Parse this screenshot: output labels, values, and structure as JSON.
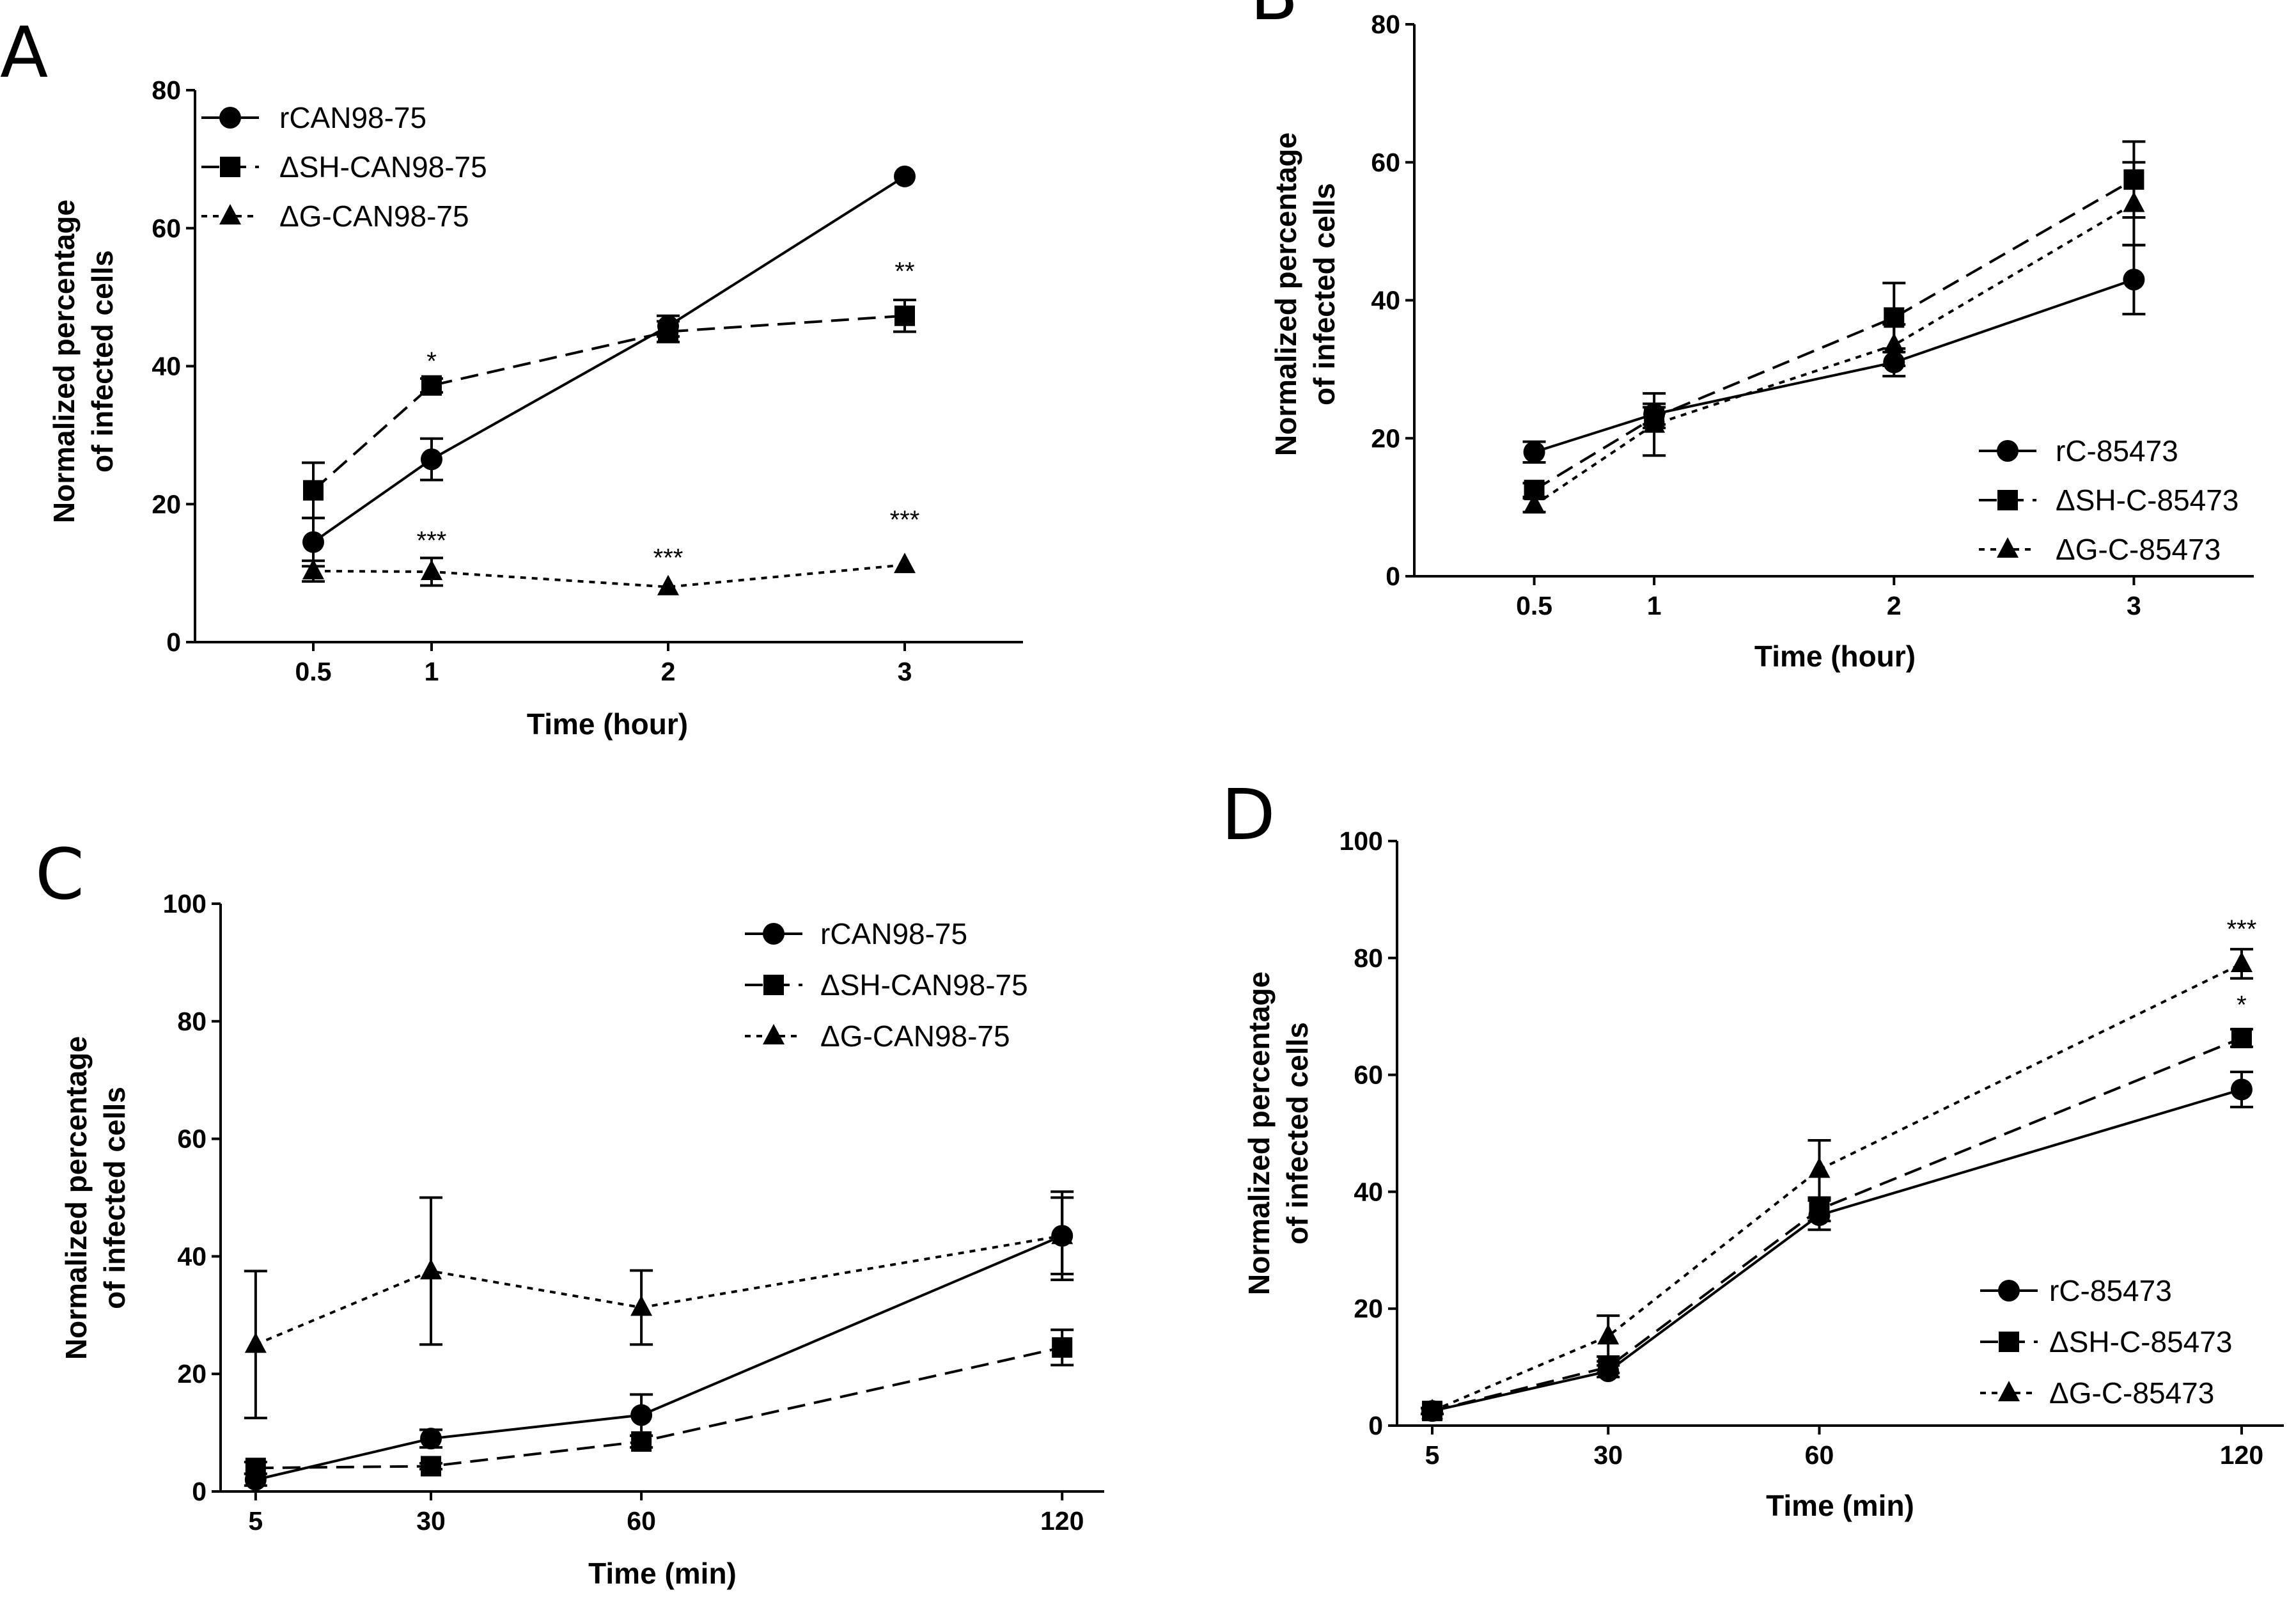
{
  "figure": {
    "panels": [
      "A",
      "B",
      "C",
      "D"
    ]
  },
  "chart_data": [
    {
      "panel": "A",
      "type": "line",
      "xlabel": "Time (hour)",
      "ylabel": [
        "Normalized percentage",
        "of infected cells"
      ],
      "x": [
        0.5,
        1,
        2,
        3
      ],
      "xticks": [
        "0.5",
        "1",
        "2",
        "3"
      ],
      "xlim": [
        0,
        3.5
      ],
      "ylim": [
        0,
        80
      ],
      "yticks": [
        "0",
        "20",
        "40",
        "60",
        "80"
      ],
      "legend_position": "top-left",
      "series": [
        {
          "name": "rCAN98-75",
          "marker": "circle",
          "dash": "solid",
          "values": [
            14.5,
            26.5,
            45.8,
            67.5
          ],
          "errors": [
            3.5,
            3,
            1.5,
            0
          ]
        },
        {
          "name": "ΔSH-CAN98-75",
          "marker": "square",
          "dash": "dashed",
          "values": [
            22,
            37.2,
            45,
            47.3
          ],
          "errors": [
            4,
            1,
            1.5,
            2.3
          ]
        },
        {
          "name": "ΔG-CAN98-75",
          "marker": "triangle",
          "dash": "dotted",
          "values": [
            10.3,
            10.2,
            8,
            11.2
          ],
          "errors": [
            1.5,
            2,
            0,
            0
          ]
        }
      ],
      "annotations": [
        {
          "x": 1,
          "y": 39.5,
          "text": "*"
        },
        {
          "x": 3,
          "y": 52.5,
          "text": "**"
        },
        {
          "x": 1,
          "y": 13.5,
          "text": "***"
        },
        {
          "x": 2,
          "y": 11,
          "text": "***"
        },
        {
          "x": 3,
          "y": 16.5,
          "text": "***"
        }
      ]
    },
    {
      "panel": "B",
      "type": "line",
      "xlabel": "Time (hour)",
      "ylabel": [
        "Normalized percentage",
        "of infected cells"
      ],
      "x": [
        0.5,
        1,
        2,
        3
      ],
      "xticks": [
        "0.5",
        "1",
        "2",
        "3"
      ],
      "xlim": [
        0,
        3.5
      ],
      "ylim": [
        0,
        80
      ],
      "yticks": [
        "0",
        "20",
        "40",
        "60",
        "80"
      ],
      "legend_position": "bottom-right",
      "series": [
        {
          "name": "rC-85473",
          "marker": "circle",
          "dash": "solid",
          "values": [
            18,
            23.5,
            31,
            43
          ],
          "errors": [
            1.5,
            1.5,
            2,
            5
          ]
        },
        {
          "name": "ΔSH-C-85473",
          "marker": "square",
          "dash": "dashed",
          "values": [
            12.5,
            23,
            37.5,
            57.5
          ],
          "errors": [
            1,
            1.5,
            5,
            5.5
          ]
        },
        {
          "name": "ΔG-C-85473",
          "marker": "triangle",
          "dash": "dotted",
          "values": [
            10.3,
            22,
            33.5,
            54
          ],
          "errors": [
            1,
            4.5,
            3,
            6
          ]
        }
      ],
      "annotations": []
    },
    {
      "panel": "C",
      "type": "line",
      "xlabel": "Time (min)",
      "ylabel": [
        "Normalized percentage",
        "of infected cells"
      ],
      "x": [
        5,
        30,
        60,
        120
      ],
      "xticks": [
        "5",
        "30",
        "60",
        "120"
      ],
      "xlim": [
        0,
        126
      ],
      "ylim": [
        0,
        100
      ],
      "yticks": [
        "0",
        "20",
        "40",
        "60",
        "80",
        "100"
      ],
      "legend_position": "top-right",
      "series": [
        {
          "name": "rCAN98-75",
          "marker": "circle",
          "dash": "solid",
          "values": [
            2,
            9,
            13,
            43.5
          ],
          "errors": [
            1,
            1.5,
            3.5,
            7.5
          ]
        },
        {
          "name": "ΔSH-CAN98-75",
          "marker": "square",
          "dash": "dashed",
          "values": [
            4,
            4.3,
            8.5,
            24.5
          ],
          "errors": [
            1,
            0.5,
            1,
            3
          ]
        },
        {
          "name": "ΔG-CAN98-75",
          "marker": "triangle",
          "dash": "dotted",
          "values": [
            25,
            37.5,
            31.3,
            43.5
          ],
          "errors": [
            12.5,
            12.5,
            6.3,
            6.5
          ]
        }
      ],
      "annotations": []
    },
    {
      "panel": "D",
      "type": "line",
      "xlabel": "Time (min)",
      "ylabel": [
        "Normalized percentage",
        "of infected cells"
      ],
      "x": [
        5,
        30,
        60,
        120
      ],
      "xticks": [
        "5",
        "30",
        "60",
        "120"
      ],
      "xlim": [
        0,
        126
      ],
      "ylim": [
        0,
        100
      ],
      "yticks": [
        "0",
        "20",
        "40",
        "60",
        "80",
        "100"
      ],
      "legend_position": "bottom-right",
      "series": [
        {
          "name": "rC-85473",
          "marker": "circle",
          "dash": "solid",
          "values": [
            2.5,
            9.3,
            36,
            57.5
          ],
          "errors": [
            0.5,
            1,
            2.5,
            3
          ]
        },
        {
          "name": "ΔSH-C-85473",
          "marker": "square",
          "dash": "dashed",
          "values": [
            2.5,
            10,
            37,
            66.3
          ],
          "errors": [
            0.5,
            1,
            2,
            1.5
          ]
        },
        {
          "name": "ΔG-C-85473",
          "marker": "triangle",
          "dash": "dotted",
          "values": [
            2.5,
            15.3,
            43.8,
            79
          ],
          "errors": [
            0.5,
            3.5,
            5,
            2.5
          ]
        }
      ],
      "annotations": [
        {
          "x": 120,
          "y": 83.5,
          "text": "***"
        },
        {
          "x": 120,
          "y": 70.5,
          "text": "*"
        }
      ]
    }
  ]
}
